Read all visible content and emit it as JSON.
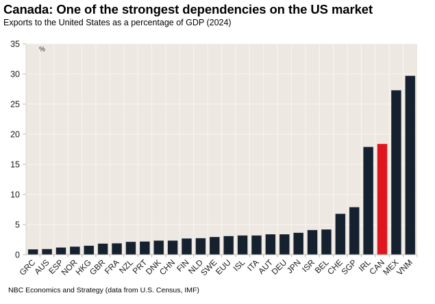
{
  "header": {
    "title": "Canada: One of the strongest dependencies on the US market",
    "subtitle": "Exports to the United States as a percentage of GDP (2024)"
  },
  "footer": {
    "source": "NBC Economics and Strategy (data from U.S. Census, IMF)"
  },
  "colors": {
    "bar": "#15212e",
    "highlight": "#e0161e",
    "plot_background": "#eee8e2",
    "gridline": "#f8f5f1"
  },
  "chart_data": {
    "type": "bar",
    "title": "Canada: One of the strongest dependencies on the US market",
    "subtitle": "Exports to the United States as a percentage of GDP (2024)",
    "xlabel": "",
    "ylabel": "",
    "unit_label": "%",
    "ylim": [
      0,
      35
    ],
    "yticks": [
      0,
      5,
      10,
      15,
      20,
      25,
      30,
      35
    ],
    "grid": true,
    "legend": "none",
    "highlight_category": "CAN",
    "categories": [
      "GRC",
      "AUS",
      "ESP",
      "NOR",
      "HKG",
      "GBR",
      "FRA",
      "NZL",
      "PRT",
      "DNK",
      "CHN",
      "FIN",
      "NLD",
      "SWE",
      "EUU",
      "ISL",
      "ITA",
      "AUT",
      "DEU",
      "JPN",
      "ISR",
      "BEL",
      "CHE",
      "SGP",
      "IRL",
      "CAN",
      "MEX",
      "VNM"
    ],
    "values": [
      0.9,
      0.95,
      1.2,
      1.35,
      1.5,
      1.85,
      1.9,
      2.15,
      2.2,
      2.35,
      2.35,
      2.7,
      2.75,
      2.95,
      3.1,
      3.2,
      3.2,
      3.4,
      3.4,
      3.65,
      4.1,
      4.2,
      6.8,
      7.9,
      17.9,
      18.4,
      27.3,
      29.7
    ],
    "source": "NBC Economics and Strategy (data from U.S. Census, IMF)"
  }
}
